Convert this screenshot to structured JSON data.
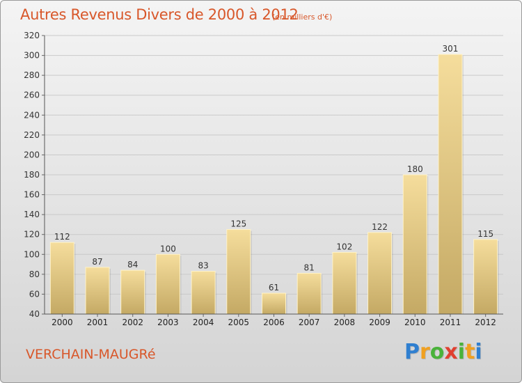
{
  "title": "Autres Revenus Divers de 2000 à 2012",
  "subtitle": "(en milliers d'€)",
  "commune": "VERCHAIN-MAUGRé",
  "logo": {
    "letters": [
      "P",
      "r",
      "o",
      "x",
      "i",
      "t",
      "i"
    ],
    "colors": [
      "#2f7fd0",
      "#f0a020",
      "#49b23a",
      "#e04030",
      "#49b23a",
      "#f0a020",
      "#2f7fd0"
    ]
  },
  "colors": {
    "title": "#d8572a",
    "bar_top": "#f5dd9c",
    "bar_bottom": "#c4a964",
    "grid": "#c9c9c9"
  },
  "chart_data": {
    "type": "bar",
    "title": "Autres Revenus Divers de 2000 à 2012",
    "subtitle": "(en milliers d'€)",
    "categories": [
      "2000",
      "2001",
      "2002",
      "2003",
      "2004",
      "2005",
      "2006",
      "2007",
      "2008",
      "2009",
      "2010",
      "2011",
      "2012"
    ],
    "values": [
      112,
      87,
      84,
      100,
      83,
      125,
      61,
      81,
      102,
      122,
      180,
      301,
      115
    ],
    "data_labels": [
      "112",
      "87",
      "84",
      "100",
      "83",
      "125",
      "61",
      "81",
      "102",
      "122",
      "180",
      "301",
      "115"
    ],
    "ylim": [
      40,
      320
    ],
    "yticks": [
      "40",
      "60",
      "80",
      "100",
      "120",
      "140",
      "160",
      "180",
      "200",
      "220",
      "240",
      "260",
      "280",
      "300",
      "320"
    ],
    "grid": true
  }
}
